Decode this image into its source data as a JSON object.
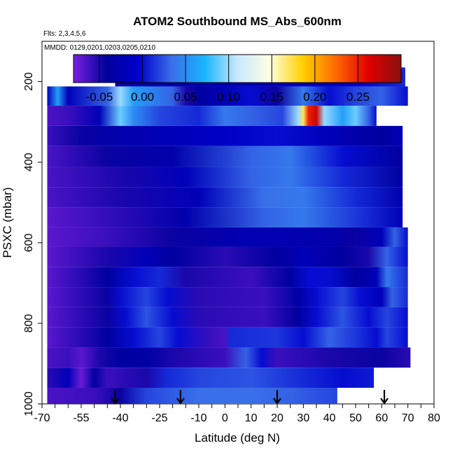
{
  "chart_data": {
    "type": "heatmap",
    "title": "ATOM2 Southbound MS_Abs_600nm",
    "flights_note": "Flts: 2,3,4,5,6",
    "dates_note": "MMDD: 0129,0201,0203,0205,0210",
    "xlabel": "Latitude (deg N)",
    "ylabel": "PSXC (mbar)",
    "xlim": [
      -70,
      80
    ],
    "ylim": [
      1000,
      100
    ],
    "x_tick_labels": [
      "-70",
      "-55",
      "-40",
      "-25",
      "-10",
      "0",
      "10",
      "20",
      "30",
      "40",
      "50",
      "60",
      "70",
      "80"
    ],
    "x_tick_values": [
      -70,
      -55,
      -40,
      -25,
      -10,
      0,
      10,
      20,
      30,
      40,
      50,
      60,
      70,
      80
    ],
    "y_tick_labels": [
      "200",
      "400",
      "600",
      "800",
      "1000"
    ],
    "y_tick_values": [
      200,
      400,
      600,
      800,
      1000
    ],
    "colorbar": {
      "range": [
        -0.08,
        0.3
      ],
      "tick_labels": [
        "-0.05",
        "0.00",
        "0.05",
        "0.10",
        "0.15",
        "0.20",
        "0.25"
      ],
      "tick_values": [
        -0.05,
        0.0,
        0.05,
        0.1,
        0.15,
        0.2,
        0.25
      ],
      "colors": [
        "#7a1fe0",
        "#00009c",
        "#0000cd",
        "#3a6ee8",
        "#18b4ff",
        "#c8e8ff",
        "#ffffe0",
        "#ffd000",
        "#ff6a00",
        "#e00000",
        "#8a1010"
      ]
    },
    "arrows_latitude": [
      -42,
      -17,
      20,
      61
    ],
    "rows": [
      {
        "p_top": 165,
        "p_bot": 212,
        "x0": -42,
        "x1": 69,
        "stops": [
          [
            -42,
            -0.045
          ],
          [
            -15,
            -0.03
          ],
          [
            20,
            -0.02
          ],
          [
            50,
            -0.01
          ],
          [
            69,
            0.01
          ]
        ]
      },
      {
        "p_top": 212,
        "p_bot": 260,
        "x0": -68,
        "x1": 70,
        "stops": [
          [
            -68,
            -0.02
          ],
          [
            -64,
            0.06
          ],
          [
            -60,
            -0.02
          ],
          [
            -45,
            0.03
          ],
          [
            -40,
            0.1
          ],
          [
            -35,
            0.06
          ],
          [
            -20,
            0.03
          ],
          [
            -15,
            -0.05
          ],
          [
            -10,
            -0.04
          ],
          [
            0,
            -0.02
          ],
          [
            10,
            0.0
          ],
          [
            20,
            -0.045
          ],
          [
            30,
            0.04
          ],
          [
            40,
            0.0
          ],
          [
            50,
            0.02
          ],
          [
            60,
            0.03
          ],
          [
            70,
            0.0
          ]
        ]
      },
      {
        "p_top": 260,
        "p_bot": 310,
        "x0": -68,
        "x1": 58,
        "stops": [
          [
            -68,
            -0.065
          ],
          [
            -60,
            -0.06
          ],
          [
            -48,
            -0.02
          ],
          [
            -40,
            0.09
          ],
          [
            -35,
            0.05
          ],
          [
            -25,
            0.02
          ],
          [
            -10,
            0.01
          ],
          [
            0,
            0.04
          ],
          [
            10,
            0.03
          ],
          [
            22,
            0.02
          ],
          [
            28,
            0.1
          ],
          [
            30,
            0.17
          ],
          [
            32,
            0.25
          ],
          [
            35,
            0.27
          ],
          [
            38,
            0.1
          ],
          [
            45,
            0.06
          ],
          [
            50,
            0.09
          ],
          [
            55,
            0.03
          ],
          [
            58,
            0.0
          ]
        ]
      },
      {
        "p_top": 310,
        "p_bot": 360,
        "x0": -68,
        "x1": 68,
        "stops": [
          [
            -68,
            -0.06
          ],
          [
            -55,
            -0.045
          ],
          [
            -40,
            -0.03
          ],
          [
            0,
            -0.01
          ],
          [
            20,
            0.0
          ],
          [
            40,
            -0.02
          ],
          [
            60,
            -0.04
          ],
          [
            68,
            -0.02
          ]
        ]
      },
      {
        "p_top": 360,
        "p_bot": 412,
        "x0": -68,
        "x1": 68,
        "stops": [
          [
            -68,
            -0.065
          ],
          [
            -45,
            -0.045
          ],
          [
            -20,
            -0.03
          ],
          [
            10,
            0.03
          ],
          [
            25,
            0.04
          ],
          [
            45,
            0.0
          ],
          [
            68,
            -0.04
          ]
        ]
      },
      {
        "p_top": 412,
        "p_bot": 462,
        "x0": -68,
        "x1": 68,
        "stops": [
          [
            -68,
            -0.065
          ],
          [
            -40,
            -0.05
          ],
          [
            -15,
            -0.02
          ],
          [
            10,
            0.03
          ],
          [
            25,
            0.04
          ],
          [
            45,
            0.01
          ],
          [
            68,
            -0.04
          ]
        ]
      },
      {
        "p_top": 462,
        "p_bot": 512,
        "x0": -68,
        "x1": 68,
        "stops": [
          [
            -68,
            -0.065
          ],
          [
            -40,
            -0.05
          ],
          [
            -10,
            -0.02
          ],
          [
            15,
            0.035
          ],
          [
            30,
            0.04
          ],
          [
            50,
            0.01
          ],
          [
            68,
            -0.03
          ]
        ]
      },
      {
        "p_top": 512,
        "p_bot": 562,
        "x0": -68,
        "x1": 68,
        "stops": [
          [
            -68,
            -0.07
          ],
          [
            -40,
            -0.055
          ],
          [
            -15,
            -0.03
          ],
          [
            15,
            0.03
          ],
          [
            30,
            0.04
          ],
          [
            50,
            0.015
          ],
          [
            68,
            -0.02
          ]
        ]
      },
      {
        "p_top": 562,
        "p_bot": 610,
        "x0": -68,
        "x1": 70,
        "stops": [
          [
            -68,
            -0.07
          ],
          [
            -45,
            -0.06
          ],
          [
            -20,
            -0.045
          ],
          [
            10,
            -0.025
          ],
          [
            40,
            -0.03
          ],
          [
            50,
            -0.045
          ],
          [
            60,
            -0.02
          ],
          [
            65,
            0.03
          ],
          [
            70,
            0.0
          ]
        ]
      },
      {
        "p_top": 610,
        "p_bot": 660,
        "x0": -68,
        "x1": 70,
        "stops": [
          [
            -68,
            -0.07
          ],
          [
            -45,
            -0.05
          ],
          [
            -30,
            -0.02
          ],
          [
            -20,
            -0.04
          ],
          [
            0,
            -0.055
          ],
          [
            20,
            -0.04
          ],
          [
            30,
            -0.02
          ],
          [
            45,
            -0.04
          ],
          [
            55,
            -0.05
          ],
          [
            62,
            0.03
          ],
          [
            70,
            0.0
          ]
        ]
      },
      {
        "p_top": 660,
        "p_bot": 710,
        "x0": -68,
        "x1": 70,
        "stops": [
          [
            -68,
            -0.07
          ],
          [
            -45,
            -0.04
          ],
          [
            -35,
            0.0
          ],
          [
            -25,
            0.01
          ],
          [
            -15,
            -0.05
          ],
          [
            10,
            -0.06
          ],
          [
            25,
            -0.04
          ],
          [
            32,
            0.0
          ],
          [
            40,
            0.0
          ],
          [
            50,
            -0.04
          ],
          [
            58,
            -0.02
          ],
          [
            62,
            0.04
          ],
          [
            70,
            0.01
          ]
        ]
      },
      {
        "p_top": 710,
        "p_bot": 760,
        "x0": -68,
        "x1": 70,
        "stops": [
          [
            -68,
            -0.07
          ],
          [
            -45,
            -0.045
          ],
          [
            -40,
            0.0
          ],
          [
            -30,
            0.02
          ],
          [
            -22,
            0.0
          ],
          [
            -10,
            -0.055
          ],
          [
            15,
            -0.06
          ],
          [
            28,
            -0.035
          ],
          [
            35,
            0.0
          ],
          [
            45,
            0.02
          ],
          [
            52,
            0.0
          ],
          [
            60,
            -0.02
          ],
          [
            64,
            0.03
          ],
          [
            70,
            0.01
          ]
        ]
      },
      {
        "p_top": 760,
        "p_bot": 810,
        "x0": -68,
        "x1": 70,
        "stops": [
          [
            -68,
            -0.07
          ],
          [
            -45,
            -0.045
          ],
          [
            -38,
            0.0
          ],
          [
            -30,
            0.025
          ],
          [
            -20,
            0.0
          ],
          [
            -10,
            -0.055
          ],
          [
            15,
            -0.06
          ],
          [
            28,
            -0.04
          ],
          [
            35,
            0.0
          ],
          [
            45,
            0.025
          ],
          [
            55,
            0.0
          ],
          [
            62,
            0.02
          ],
          [
            70,
            0.0
          ]
        ]
      },
      {
        "p_top": 810,
        "p_bot": 860,
        "x0": -68,
        "x1": 70,
        "stops": [
          [
            -68,
            -0.07
          ],
          [
            -45,
            -0.04
          ],
          [
            -35,
            0.0
          ],
          [
            -25,
            0.02
          ],
          [
            -18,
            0.0
          ],
          [
            -5,
            -0.06
          ],
          [
            0,
            -0.065
          ],
          [
            2,
            0.01
          ],
          [
            20,
            0.015
          ],
          [
            30,
            0.0
          ],
          [
            40,
            0.03
          ],
          [
            50,
            0.015
          ],
          [
            58,
            0.0
          ],
          [
            62,
            0.02
          ],
          [
            70,
            0.0
          ]
        ]
      },
      {
        "p_top": 860,
        "p_bot": 910,
        "x0": -68,
        "x1": 71,
        "stops": [
          [
            -68,
            -0.065
          ],
          [
            -60,
            -0.06
          ],
          [
            -55,
            -0.07
          ],
          [
            -48,
            -0.05
          ],
          [
            -40,
            -0.04
          ],
          [
            -30,
            -0.035
          ],
          [
            -20,
            -0.05
          ],
          [
            0,
            -0.06
          ],
          [
            8,
            0.03
          ],
          [
            14,
            0.0
          ],
          [
            20,
            -0.06
          ],
          [
            40,
            -0.05
          ],
          [
            60,
            -0.045
          ],
          [
            71,
            -0.055
          ]
        ]
      },
      {
        "p_top": 910,
        "p_bot": 960,
        "x0": -68,
        "x1": 57,
        "stops": [
          [
            -68,
            -0.055
          ],
          [
            -60,
            -0.02
          ],
          [
            -55,
            -0.075
          ],
          [
            -50,
            -0.04
          ],
          [
            -45,
            -0.06
          ],
          [
            -38,
            -0.055
          ],
          [
            -30,
            -0.05
          ],
          [
            -22,
            0.01
          ],
          [
            -10,
            0.02
          ],
          [
            10,
            0.025
          ],
          [
            30,
            0.01
          ],
          [
            45,
            0.0
          ],
          [
            57,
            0.005
          ]
        ]
      },
      {
        "p_top": 960,
        "p_bot": 1010,
        "x0": -68,
        "x1": 43,
        "stops": [
          [
            -68,
            -0.065
          ],
          [
            -50,
            -0.06
          ],
          [
            -40,
            -0.045
          ],
          [
            -30,
            0.02
          ],
          [
            -10,
            0.035
          ],
          [
            10,
            0.035
          ],
          [
            25,
            0.03
          ],
          [
            43,
            0.02
          ]
        ]
      }
    ]
  }
}
